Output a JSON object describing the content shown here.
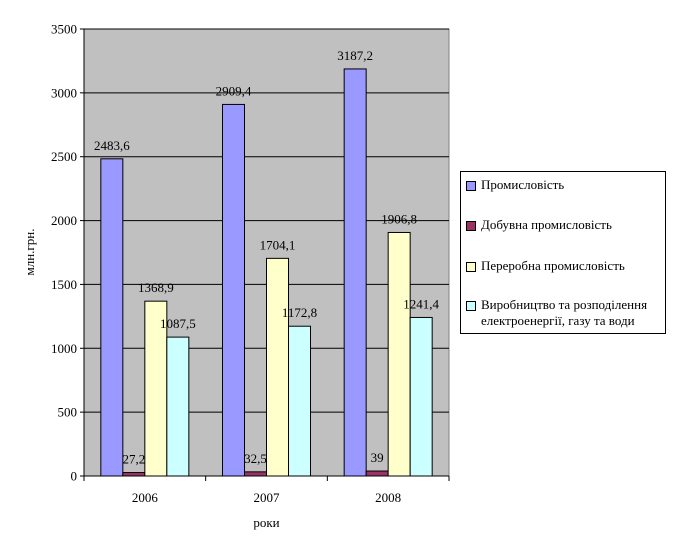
{
  "chart_data": {
    "type": "bar",
    "categories": [
      "2006",
      "2007",
      "2008"
    ],
    "series": [
      {
        "name": "Промисловість",
        "values": [
          2483.6,
          2909.4,
          3187.2
        ],
        "labels": [
          "2483,6",
          "2909,4",
          "3187,2"
        ],
        "color": "#9999FF"
      },
      {
        "name": "Добувна промисловість",
        "values": [
          27.2,
          32.5,
          39
        ],
        "labels": [
          "27,2",
          "32,5",
          "39"
        ],
        "color": "#993366"
      },
      {
        "name": "Переробна промисловість",
        "values": [
          1368.9,
          1704.1,
          1906.8
        ],
        "labels": [
          "1368,9",
          "1704,1",
          "1906,8"
        ],
        "color": "#FFFFCC"
      },
      {
        "name": "Виробництво та розподілення електроенергії, газу та води",
        "values": [
          1087.5,
          1172.8,
          1241.4
        ],
        "labels": [
          "1087,5",
          "1172,8",
          "1241,4"
        ],
        "color": "#CCFFFF"
      }
    ],
    "xlabel": "роки",
    "ylabel": "млн.грн.",
    "ylim": [
      0,
      3500
    ],
    "yticks": [
      "0",
      "500",
      "1000",
      "1500",
      "2000",
      "2500",
      "3000",
      "3500"
    ],
    "plot_background": "#C0C0C0",
    "grid": true,
    "legend_position": "right"
  }
}
